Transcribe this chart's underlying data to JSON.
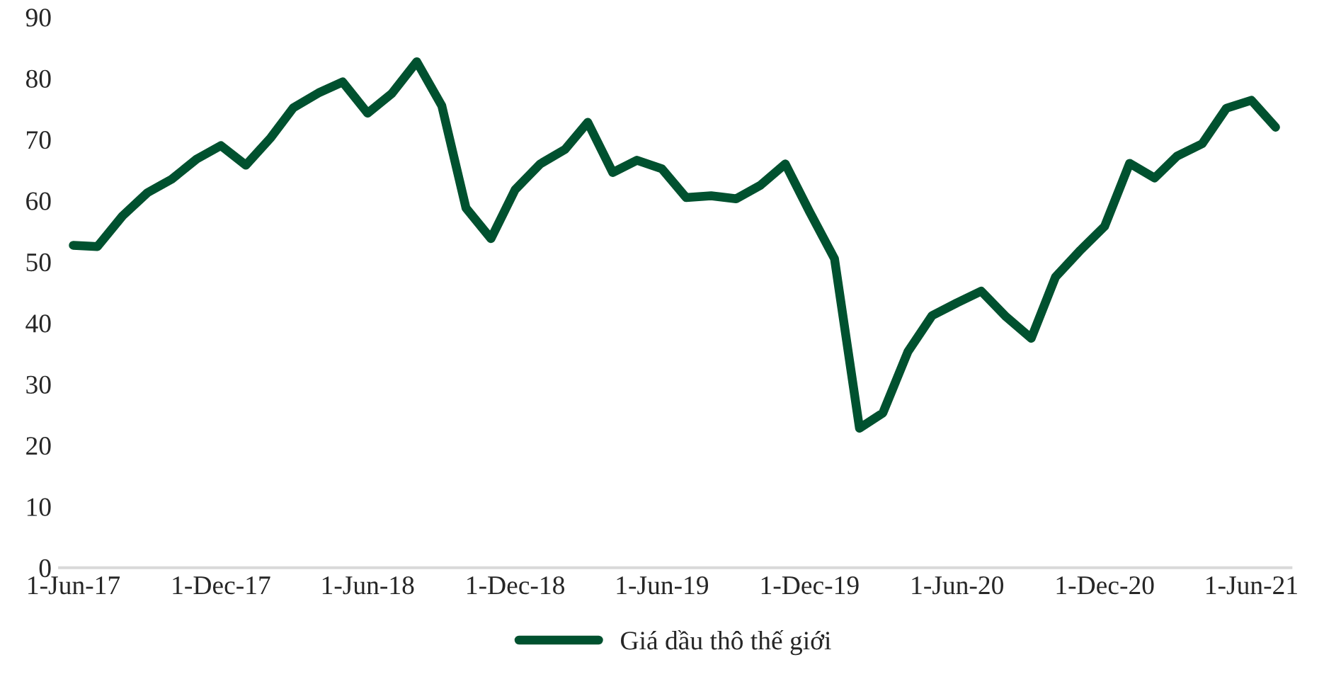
{
  "chart_data": {
    "type": "line",
    "x": [
      "2017-06-01",
      "2017-07-01",
      "2017-08-01",
      "2017-09-01",
      "2017-10-01",
      "2017-11-01",
      "2017-12-01",
      "2018-01-01",
      "2018-02-01",
      "2018-03-01",
      "2018-04-01",
      "2018-05-01",
      "2018-06-01",
      "2018-07-01",
      "2018-08-01",
      "2018-09-01",
      "2018-10-01",
      "2018-11-01",
      "2018-12-01",
      "2019-01-01",
      "2019-02-01",
      "2019-03-01",
      "2019-04-01",
      "2019-05-01",
      "2019-06-01",
      "2019-07-01",
      "2019-08-01",
      "2019-09-01",
      "2019-10-01",
      "2019-11-01",
      "2019-12-01",
      "2020-01-01",
      "2020-02-01",
      "2020-03-01",
      "2020-04-01",
      "2020-05-01",
      "2020-06-01",
      "2020-07-01",
      "2020-08-01",
      "2020-09-01",
      "2020-10-01",
      "2020-11-01",
      "2020-12-01",
      "2021-01-01",
      "2021-02-01",
      "2021-03-01",
      "2021-04-01",
      "2021-05-01",
      "2021-06-01",
      "2021-07-01"
    ],
    "series": [
      {
        "name": "Giá dầu thô thế giới",
        "color": "#00512f",
        "values": [
          52.7,
          52.5,
          57.5,
          61.3,
          63.5,
          66.8,
          69.0,
          65.8,
          70.3,
          75.2,
          77.6,
          79.4,
          74.3,
          77.5,
          82.7,
          75.5,
          58.8,
          53.8,
          61.8,
          66.0,
          68.4,
          72.8,
          64.6,
          66.6,
          65.2,
          60.5,
          60.8,
          60.3,
          62.5,
          66.0,
          58.2,
          50.5,
          22.8,
          25.3,
          35.3,
          41.2,
          43.3,
          45.2,
          41.0,
          37.5,
          47.5,
          51.9,
          55.8,
          66.1,
          63.7,
          67.3,
          69.3,
          75.1,
          76.4,
          72.0
        ]
      }
    ],
    "ylim": [
      0,
      90
    ],
    "yticks": [
      0,
      10,
      20,
      30,
      40,
      50,
      60,
      70,
      80,
      90
    ],
    "xlim": [
      "2017-05-15",
      "2021-07-20"
    ],
    "xticks": [
      {
        "value": "2017-06-01",
        "label": "1-Jun-17"
      },
      {
        "value": "2017-12-01",
        "label": "1-Dec-17"
      },
      {
        "value": "2018-06-01",
        "label": "1-Jun-18"
      },
      {
        "value": "2018-12-01",
        "label": "1-Dec-18"
      },
      {
        "value": "2019-06-01",
        "label": "1-Jun-19"
      },
      {
        "value": "2019-12-01",
        "label": "1-Dec-19"
      },
      {
        "value": "2020-06-01",
        "label": "1-Jun-20"
      },
      {
        "value": "2020-12-01",
        "label": "1-Dec-20"
      },
      {
        "value": "2021-06-01",
        "label": "1-Jun-21"
      }
    ],
    "grid": false,
    "legend": "bottom",
    "marker": "none",
    "line_style": "solid"
  }
}
